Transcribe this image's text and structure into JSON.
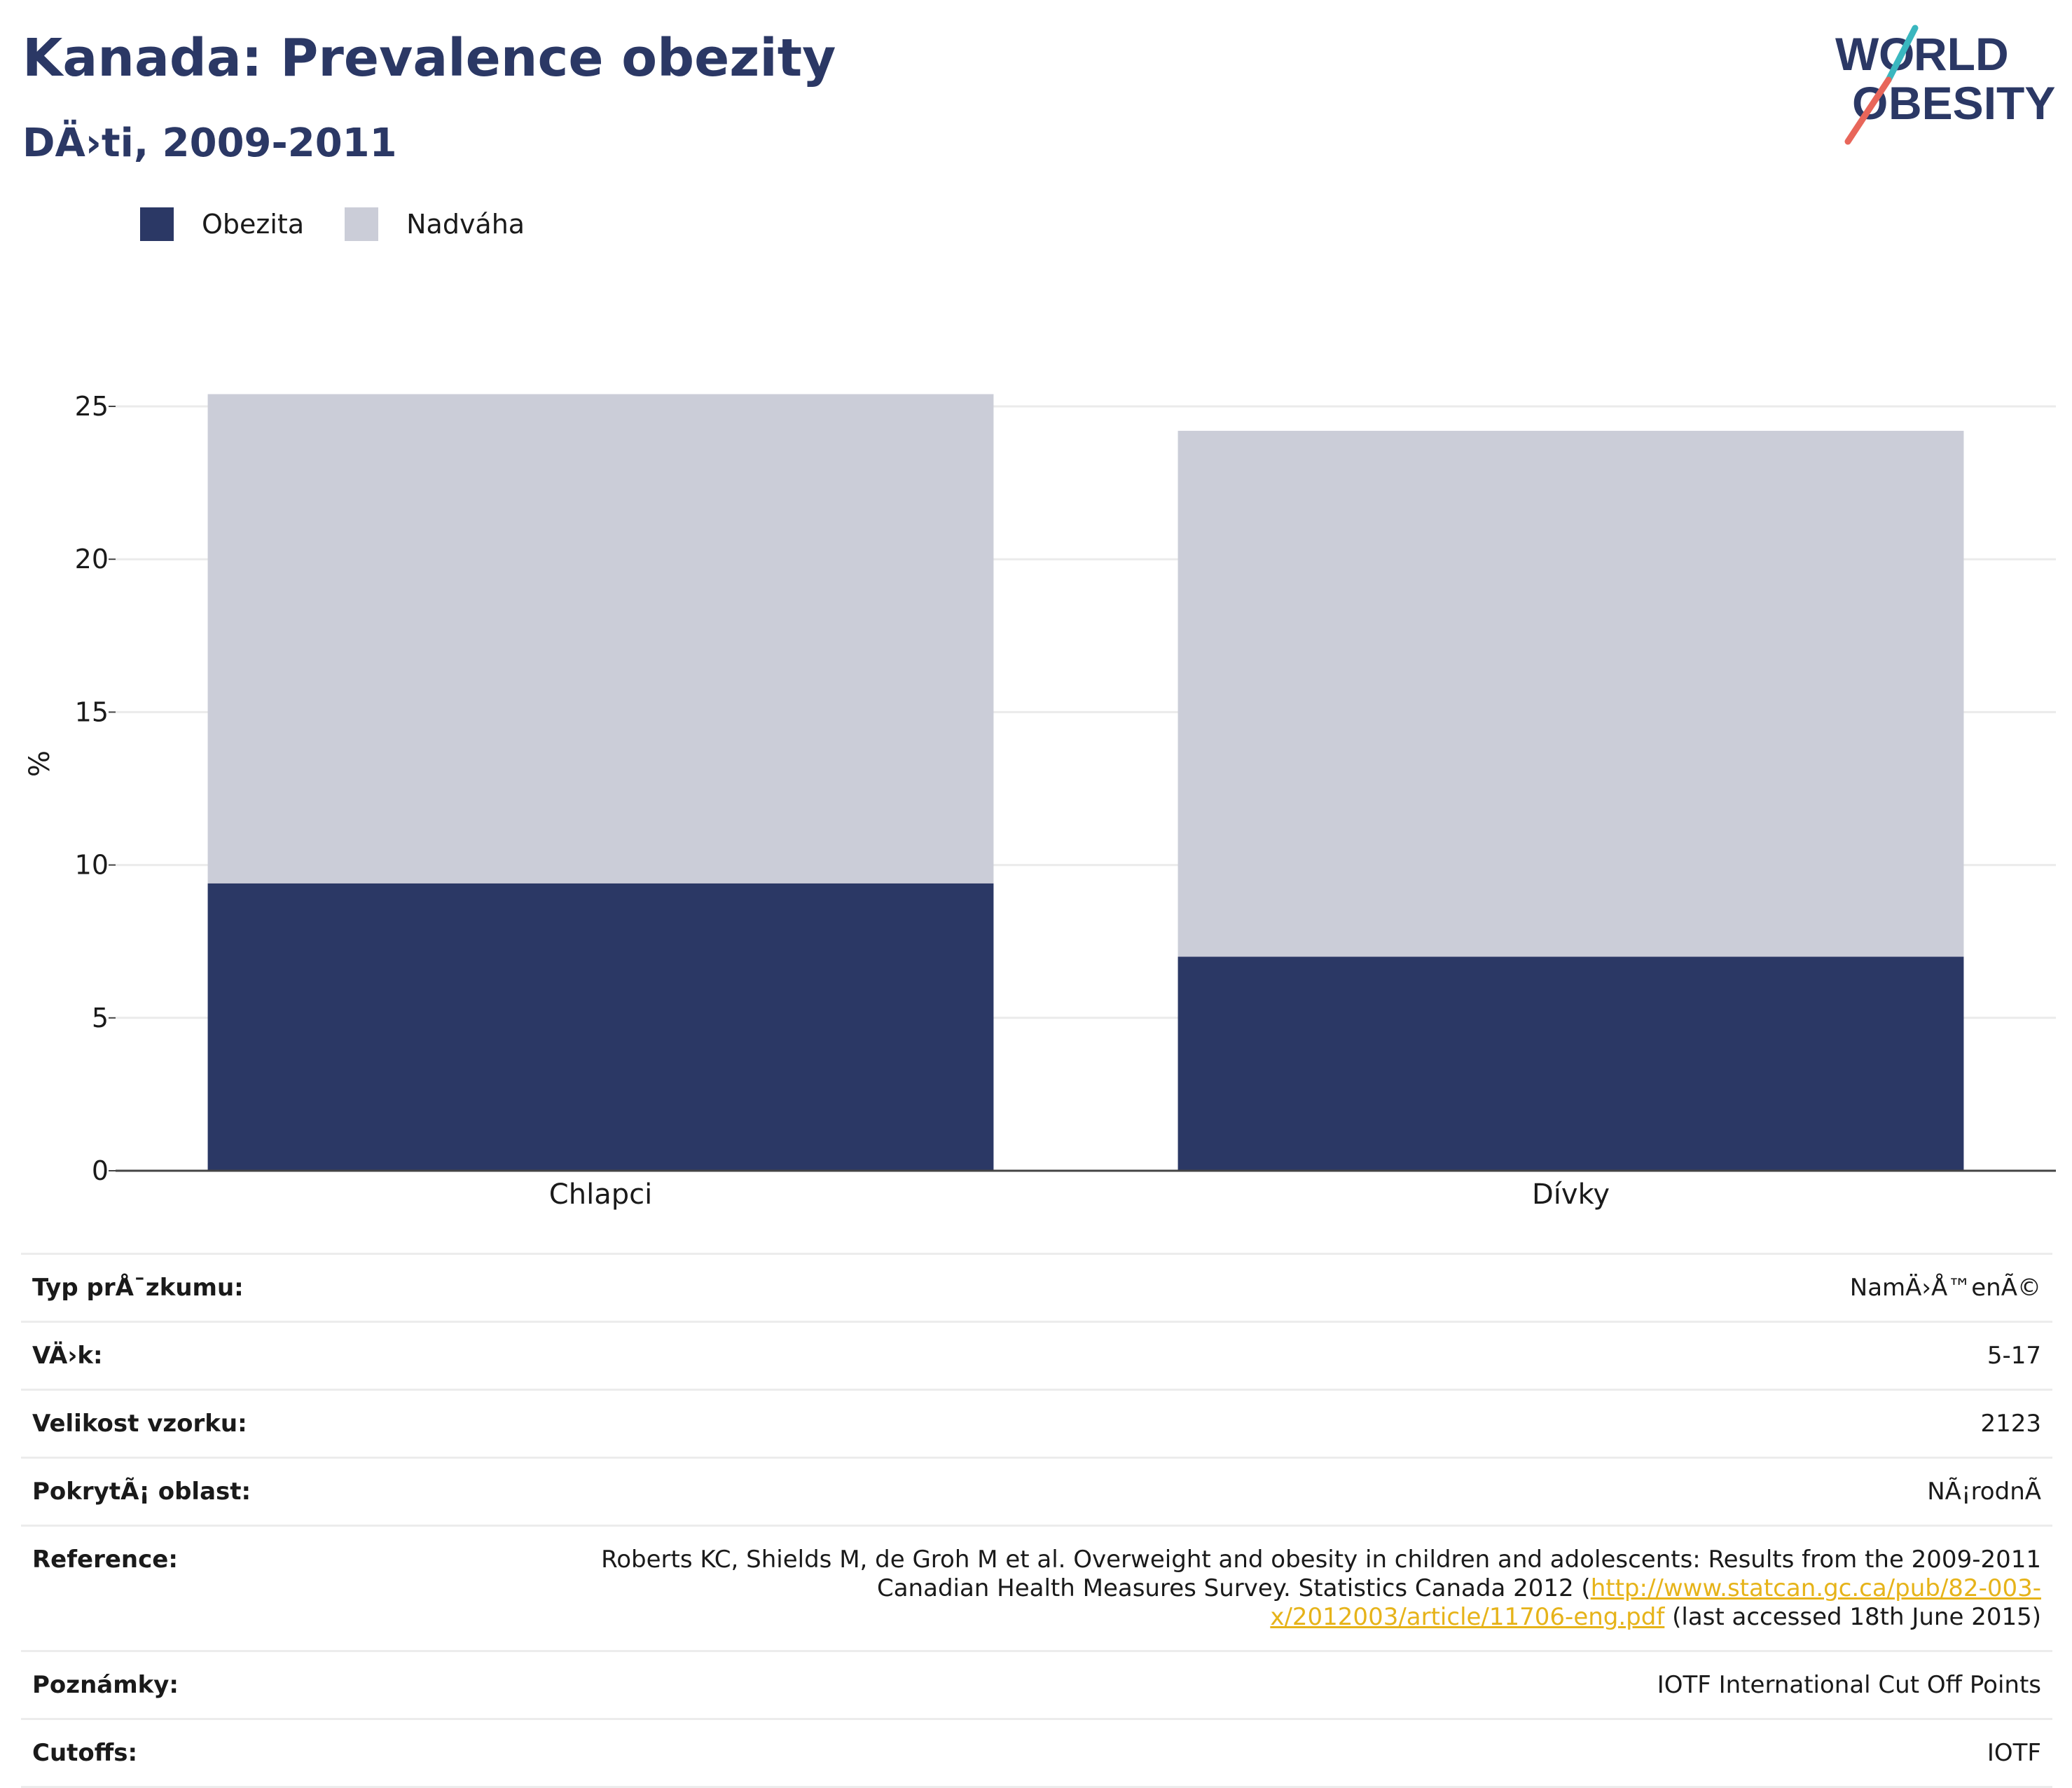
{
  "header": {
    "title": "Kanada: Prevalence obezity",
    "subtitle": "DÄ›ti, 2009-2011"
  },
  "logo": {
    "line1": "WORLD",
    "line2": "OBESITY",
    "colors": {
      "text": "#2b3865",
      "slash_red": "#e8665a",
      "slash_teal": "#3ab7bf"
    }
  },
  "chart_data": {
    "type": "bar",
    "stacked": true,
    "categories": [
      "Chlapci",
      "Dívky"
    ],
    "series": [
      {
        "name": "Obezita",
        "color": "#2b3865",
        "values": [
          9.4,
          7.0
        ]
      },
      {
        "name": "Nadváha",
        "color": "#cbcdd8",
        "values": [
          16.0,
          17.2
        ]
      }
    ],
    "totals": [
      25.4,
      24.2
    ],
    "ylabel": "%",
    "ylim": [
      0,
      25
    ],
    "yticks": [
      0,
      5,
      10,
      15,
      20,
      25
    ],
    "grid": true,
    "legend_position": "top-left"
  },
  "info": {
    "rows": [
      {
        "label": "Typ prÅ¯zkumu:",
        "value": "NamÄ›Å™enÃ©"
      },
      {
        "label": "VÄ›k:",
        "value": "5-17"
      },
      {
        "label": "Velikost vzorku:",
        "value": "2123"
      },
      {
        "label": "PokrytÃ¡ oblast:",
        "value": "NÃ¡rodnÃ­"
      }
    ],
    "reference": {
      "label": "Reference:",
      "text_before": "Roberts KC, Shields M, de Groh M et al. Overweight and obesity in children and adolescents: Results from the 2009-2011 Canadian Health Measures Survey. Statistics Canada 2012 (",
      "link": "http://www.statcan.gc.ca/pub/82-003-x/2012003/article/11706-eng.pdf",
      "text_after": " (last accessed 18th June 2015)"
    },
    "notes": {
      "label": "Poznámky:",
      "value": "IOTF International Cut Off Points"
    },
    "cutoffs": {
      "label": "Cutoffs:",
      "value": "IOTF"
    }
  }
}
